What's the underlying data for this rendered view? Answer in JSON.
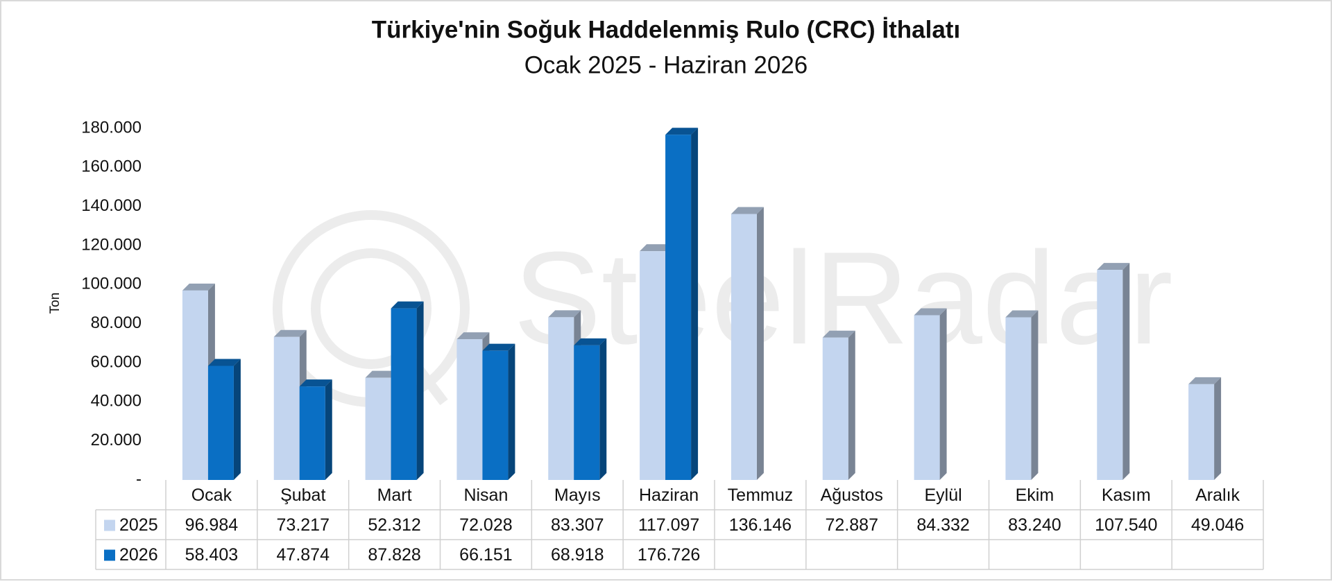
{
  "chart_data": {
    "type": "bar",
    "title": "Türkiye'nin Soğuk Haddelenmiş Rulo (CRC) İthalatı",
    "subtitle": "Ocak 2025 - Haziran 2026",
    "y_label": "Ton",
    "watermark": "SteelRadar",
    "categories": [
      "Ocak",
      "Şubat",
      "Mart",
      "Nisan",
      "Mayıs",
      "Haziran",
      "Temmuz",
      "Ağustos",
      "Eylül",
      "Ekim",
      "Kasım",
      "Aralık"
    ],
    "series": [
      {
        "name": "2025",
        "color": "#c3d5ef",
        "values": [
          96984,
          73217,
          52312,
          72028,
          83307,
          117097,
          136146,
          72887,
          84332,
          83240,
          107540,
          49046
        ],
        "value_labels": [
          "96.984",
          "73.217",
          "52.312",
          "72.028",
          "83.307",
          "117.097",
          "136.146",
          "72.887",
          "84.332",
          "83.240",
          "107.540",
          "49.046"
        ]
      },
      {
        "name": "2026",
        "color": "#0a6fc4",
        "values": [
          58403,
          47874,
          87828,
          66151,
          68918,
          176726,
          null,
          null,
          null,
          null,
          null,
          null
        ],
        "value_labels": [
          "58.403",
          "47.874",
          "87.828",
          "66.151",
          "68.918",
          "176.726",
          null,
          null,
          null,
          null,
          null,
          null
        ]
      }
    ],
    "ylim": [
      0,
      180000
    ],
    "yticks": [
      {
        "value": 0,
        "label": "-"
      },
      {
        "value": 20000,
        "label": "20.000"
      },
      {
        "value": 40000,
        "label": "40.000"
      },
      {
        "value": 60000,
        "label": "60.000"
      },
      {
        "value": 80000,
        "label": "80.000"
      },
      {
        "value": 100000,
        "label": "100.000"
      },
      {
        "value": 120000,
        "label": "120.000"
      },
      {
        "value": 140000,
        "label": "140.000"
      },
      {
        "value": 160000,
        "label": "160.000"
      },
      {
        "value": 180000,
        "label": "180.000"
      }
    ],
    "grid": false,
    "data_table": true
  }
}
